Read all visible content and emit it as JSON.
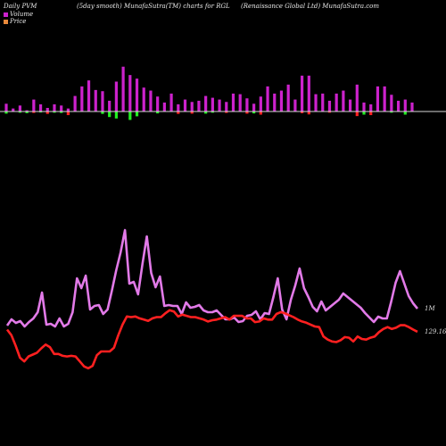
{
  "header": {
    "left": "Daily PVM",
    "middle": "(5day smooth) MunafaSutra(TM) charts for RGL",
    "right": "(Renaissance   Global Ltd) MunafaSutra.com"
  },
  "legend": [
    {
      "label": "Volume",
      "color": "#cc22cc"
    },
    {
      "label": "Price",
      "color": "#e8893a"
    }
  ],
  "colors": {
    "up_bar": "#cc22cc",
    "down_bar_red": "#ff2020",
    "down_bar_green": "#22ee22",
    "volume_line": "#cc22cc",
    "price_line": "#ff2020"
  },
  "chart_data": {
    "type": "line",
    "series": [
      {
        "name": "Volume",
        "label": "1M",
        "values": [
          0.92,
          1.08,
          1.02,
          1.06,
          0.97,
          1.04,
          1.1,
          1.2,
          1.53,
          0.95,
          0.97,
          0.92,
          1.06,
          0.93,
          0.97,
          1.17,
          1.74,
          1.57,
          1.78,
          1.21,
          1.27,
          1.28,
          1.13,
          1.2,
          1.52,
          1.86,
          2.16,
          2.66,
          1.63,
          1.65,
          1.44,
          1.96,
          2.43,
          1.81,
          1.56,
          1.75,
          1.27,
          1.28,
          1.26,
          1.27,
          1.13,
          1.32,
          1.22,
          1.24,
          1.27,
          1.18,
          1.15,
          1.16,
          1.19,
          1.1,
          1.03,
          1.02,
          1.06,
          0.97,
          0.98,
          1.08,
          1.09,
          1.16,
          1.02,
          1.12,
          1.11,
          1.4,
          1.74,
          1.18,
          1.02,
          1.35,
          1.59,
          1.88,
          1.54,
          1.38,
          1.22,
          1.14,
          1.3,
          1.16,
          1.22,
          1.29,
          1.34,
          1.45,
          1.39,
          1.33,
          1.27,
          1.21,
          1.11,
          1.04,
          0.96,
          1.06,
          1.02,
          1.02,
          1.31,
          1.64,
          1.84,
          1.62,
          1.41,
          1.29,
          1.2
        ],
        "plotted": [
          365,
          358,
          362,
          360,
          366,
          361,
          357,
          350,
          328,
          364,
          363,
          366,
          357,
          366,
          363,
          350,
          312,
          323,
          309,
          347,
          343,
          342,
          352,
          347,
          326,
          303,
          283,
          258,
          318,
          316,
          330,
          296,
          265,
          306,
          322,
          310,
          343,
          342,
          343,
          343,
          352,
          339,
          345,
          344,
          342,
          348,
          350,
          350,
          348,
          353,
          358,
          358,
          356,
          361,
          360,
          354,
          353,
          349,
          358,
          351,
          352,
          333,
          312,
          347,
          358,
          336,
          320,
          301,
          323,
          333,
          344,
          349,
          338,
          348,
          344,
          340,
          336,
          329,
          333,
          337,
          341,
          345,
          351,
          356,
          361,
          355,
          357,
          357,
          338,
          317,
          304,
          318,
          332,
          340,
          346
        ]
      },
      {
        "name": "Price",
        "label": "129.16",
        "values": [
          129.5,
          128.6,
          126.9,
          125.0,
          124.4,
          125.2,
          125.5,
          125.8,
          126.5,
          127.1,
          126.7,
          125.6,
          125.6,
          125.3,
          125.2,
          125.3,
          125.2,
          124.4,
          123.6,
          123.3,
          123.7,
          125.4,
          126.0,
          126.0,
          126.0,
          126.6,
          128.6,
          130.3,
          131.6,
          131.5,
          131.6,
          131.3,
          131.1,
          130.9,
          131.3,
          131.5,
          131.5,
          132.1,
          132.6,
          132.4,
          131.6,
          131.9,
          131.7,
          131.5,
          131.5,
          131.3,
          131.1,
          130.8,
          131.0,
          131.1,
          131.3,
          131.5,
          131.1,
          131.7,
          131.7,
          131.7,
          131.3,
          131.3,
          130.7,
          130.8,
          131.3,
          131.1,
          131.1,
          132.0,
          132.3,
          132.1,
          131.8,
          131.5,
          131.1,
          130.8,
          130.6,
          130.3,
          130.0,
          129.9,
          128.4,
          127.9,
          127.6,
          127.5,
          127.8,
          128.3,
          128.2,
          127.6,
          128.4,
          128.0,
          127.9,
          128.2,
          128.4,
          129.1,
          129.6,
          129.9,
          129.6,
          129.8,
          130.2,
          130.2,
          129.9,
          129.5,
          129.16
        ]
      }
    ],
    "volume_bars": [
      {
        "up": 0.13,
        "down": 0.09,
        "down_color": "green"
      },
      {
        "up": 0.05,
        "down": 0.0,
        "down_color": "red"
      },
      {
        "up": 0.1,
        "down": 0.05,
        "down_color": "green"
      },
      {
        "up": 0.02,
        "down": 0.07,
        "down_color": "green"
      },
      {
        "up": 0.2,
        "down": 0.06,
        "down_color": "red"
      },
      {
        "up": 0.12,
        "down": 0.04,
        "down_color": "green"
      },
      {
        "up": 0.06,
        "down": 0.1,
        "down_color": "red"
      },
      {
        "up": 0.12,
        "down": 0.05,
        "down_color": "green"
      },
      {
        "up": 0.1,
        "down": 0.06,
        "down_color": "green"
      },
      {
        "up": 0.05,
        "down": 0.15,
        "down_color": "red"
      },
      {
        "up": 0.26,
        "down": 0.0,
        "down_color": "red"
      },
      {
        "up": 0.42,
        "down": 0.0,
        "down_color": "red"
      },
      {
        "up": 0.52,
        "down": 0.0,
        "down_color": "red"
      },
      {
        "up": 0.36,
        "down": 0.0,
        "down_color": "red"
      },
      {
        "up": 0.34,
        "down": 0.1,
        "down_color": "green"
      },
      {
        "up": 0.18,
        "down": 0.23,
        "down_color": "green"
      },
      {
        "up": 0.5,
        "down": 0.29,
        "down_color": "green"
      },
      {
        "up": 0.75,
        "down": 0.0,
        "down_color": "red"
      },
      {
        "up": 0.61,
        "down": 0.35,
        "down_color": "green"
      },
      {
        "up": 0.55,
        "down": 0.2,
        "down_color": "green"
      },
      {
        "up": 0.4,
        "down": 0.0,
        "down_color": "red"
      },
      {
        "up": 0.35,
        "down": 0.0,
        "down_color": "red"
      },
      {
        "up": 0.25,
        "down": 0.08,
        "down_color": "green"
      },
      {
        "up": 0.15,
        "down": 0.0,
        "down_color": "red"
      },
      {
        "up": 0.3,
        "down": 0.0,
        "down_color": "red"
      },
      {
        "up": 0.12,
        "down": 0.1,
        "down_color": "red"
      },
      {
        "up": 0.2,
        "down": 0.0,
        "down_color": "red"
      },
      {
        "up": 0.16,
        "down": 0.09,
        "down_color": "red"
      },
      {
        "up": 0.18,
        "down": 0.0,
        "down_color": "red"
      },
      {
        "up": 0.26,
        "down": 0.09,
        "down_color": "green"
      },
      {
        "up": 0.23,
        "down": 0.05,
        "down_color": "green"
      },
      {
        "up": 0.2,
        "down": 0.0,
        "down_color": "red"
      },
      {
        "up": 0.16,
        "down": 0.06,
        "down_color": "red"
      },
      {
        "up": 0.3,
        "down": 0.0,
        "down_color": "red"
      },
      {
        "up": 0.29,
        "down": 0.0,
        "down_color": "red"
      },
      {
        "up": 0.22,
        "down": 0.09,
        "down_color": "red"
      },
      {
        "up": 0.13,
        "down": 0.08,
        "down_color": "green"
      },
      {
        "up": 0.25,
        "down": 0.13,
        "down_color": "red"
      },
      {
        "up": 0.42,
        "down": 0.0,
        "down_color": "red"
      },
      {
        "up": 0.3,
        "down": 0.0,
        "down_color": "red"
      },
      {
        "up": 0.35,
        "down": 0.0,
        "down_color": "red"
      },
      {
        "up": 0.45,
        "down": 0.0,
        "down_color": "red"
      },
      {
        "up": 0.2,
        "down": 0.0,
        "down_color": "red"
      },
      {
        "up": 0.6,
        "down": 0.07,
        "down_color": "red"
      },
      {
        "up": 0.6,
        "down": 0.12,
        "down_color": "red"
      },
      {
        "up": 0.29,
        "down": 0.0,
        "down_color": "red"
      },
      {
        "up": 0.3,
        "down": 0.0,
        "down_color": "red"
      },
      {
        "up": 0.18,
        "down": 0.05,
        "down_color": "red"
      },
      {
        "up": 0.3,
        "down": 0.0,
        "down_color": "red"
      },
      {
        "up": 0.35,
        "down": 0.0,
        "down_color": "red"
      },
      {
        "up": 0.2,
        "down": 0.0,
        "down_color": "red"
      },
      {
        "up": 0.45,
        "down": 0.19,
        "down_color": "red"
      },
      {
        "up": 0.15,
        "down": 0.13,
        "down_color": "green"
      },
      {
        "up": 0.12,
        "down": 0.15,
        "down_color": "red"
      },
      {
        "up": 0.42,
        "down": 0.0,
        "down_color": "red"
      },
      {
        "up": 0.42,
        "down": 0.0,
        "down_color": "red"
      },
      {
        "up": 0.28,
        "down": 0.05,
        "down_color": "green"
      },
      {
        "up": 0.18,
        "down": 0.0,
        "down_color": "red"
      },
      {
        "up": 0.2,
        "down": 0.13,
        "down_color": "green"
      },
      {
        "up": 0.15,
        "down": 0.0,
        "down_color": "red"
      }
    ]
  }
}
